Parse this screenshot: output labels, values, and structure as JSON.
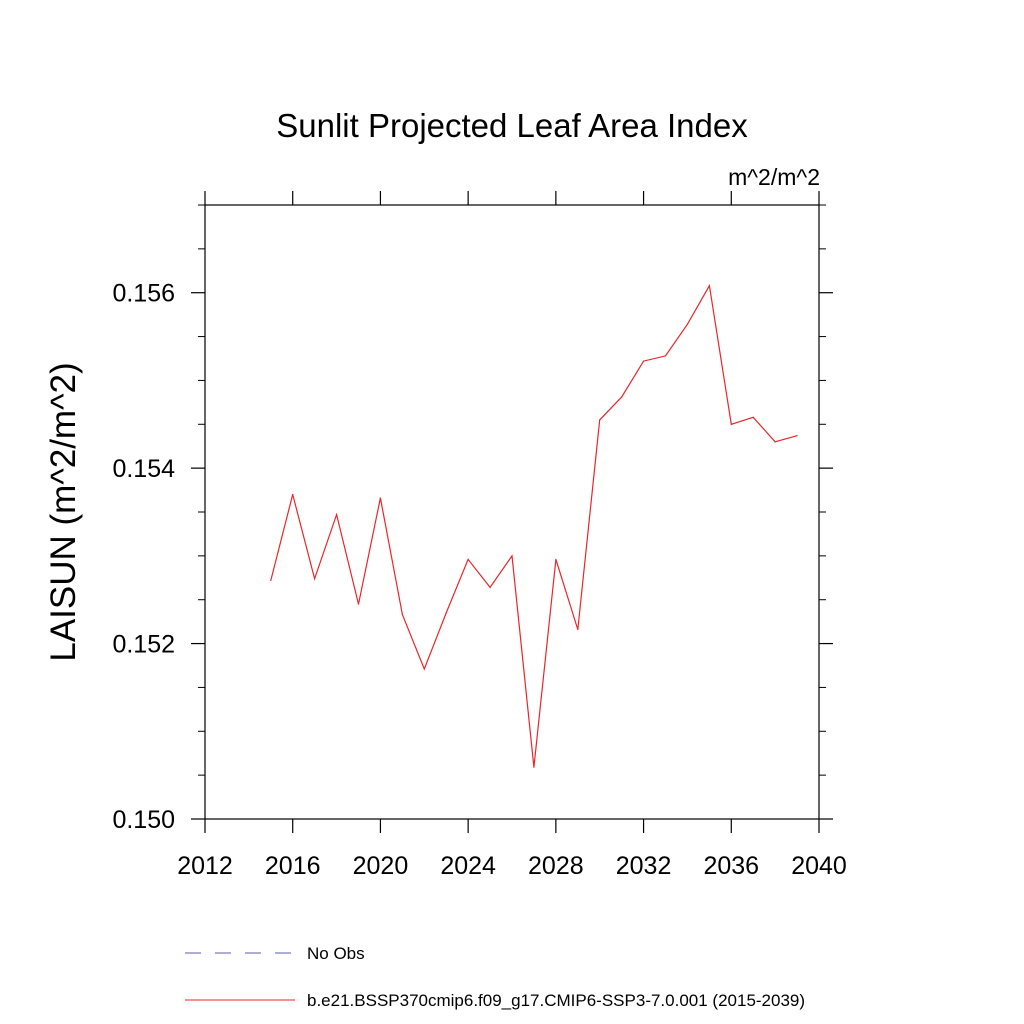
{
  "chart_data": {
    "type": "line",
    "title": "Sunlit Projected Leaf Area Index",
    "units_label": "m^2/m^2",
    "ylabel": "LAISUN  (m^2/m^2)",
    "xlabel": "",
    "xlim": [
      2012,
      2040
    ],
    "ylim": [
      0.15,
      0.157
    ],
    "x_ticks": [
      2012,
      2016,
      2020,
      2024,
      2028,
      2032,
      2036,
      2040
    ],
    "x_tick_labels": [
      "2012",
      "2016",
      "2020",
      "2024",
      "2028",
      "2032",
      "2036",
      "2040"
    ],
    "y_ticks": [
      0.15,
      0.152,
      0.154,
      0.156
    ],
    "y_tick_labels": [
      "0.150",
      "0.152",
      "0.154",
      "0.156"
    ],
    "grid": false,
    "legend_position": "bottom",
    "legend": [
      {
        "label": "No Obs",
        "color": "#5b5bb0",
        "style": "dashed"
      },
      {
        "label": "b.e21.BSSP370cmip6.f09_g17.CMIP6-SSP3-7.0.001 (2015-2039)",
        "color": "#e8262a",
        "style": "solid"
      }
    ],
    "series": [
      {
        "color": "#e8262a",
        "x": [
          2015,
          2016,
          2017,
          2018,
          2019,
          2020,
          2021,
          2022,
          2023,
          2024,
          2025,
          2026,
          2027,
          2028,
          2029,
          2030,
          2031,
          2032,
          2033,
          2034,
          2035,
          2036,
          2037,
          2038,
          2039
        ],
        "y": [
          0.15272,
          0.1537,
          0.15274,
          0.15347,
          0.15245,
          0.15366,
          0.15233,
          0.15171,
          0.15235,
          0.15296,
          0.15264,
          0.153,
          0.15059,
          0.15296,
          0.15216,
          0.15455,
          0.15481,
          0.15522,
          0.15528,
          0.15564,
          0.15608,
          0.1545,
          0.15458,
          0.1543,
          0.15437
        ]
      }
    ]
  }
}
